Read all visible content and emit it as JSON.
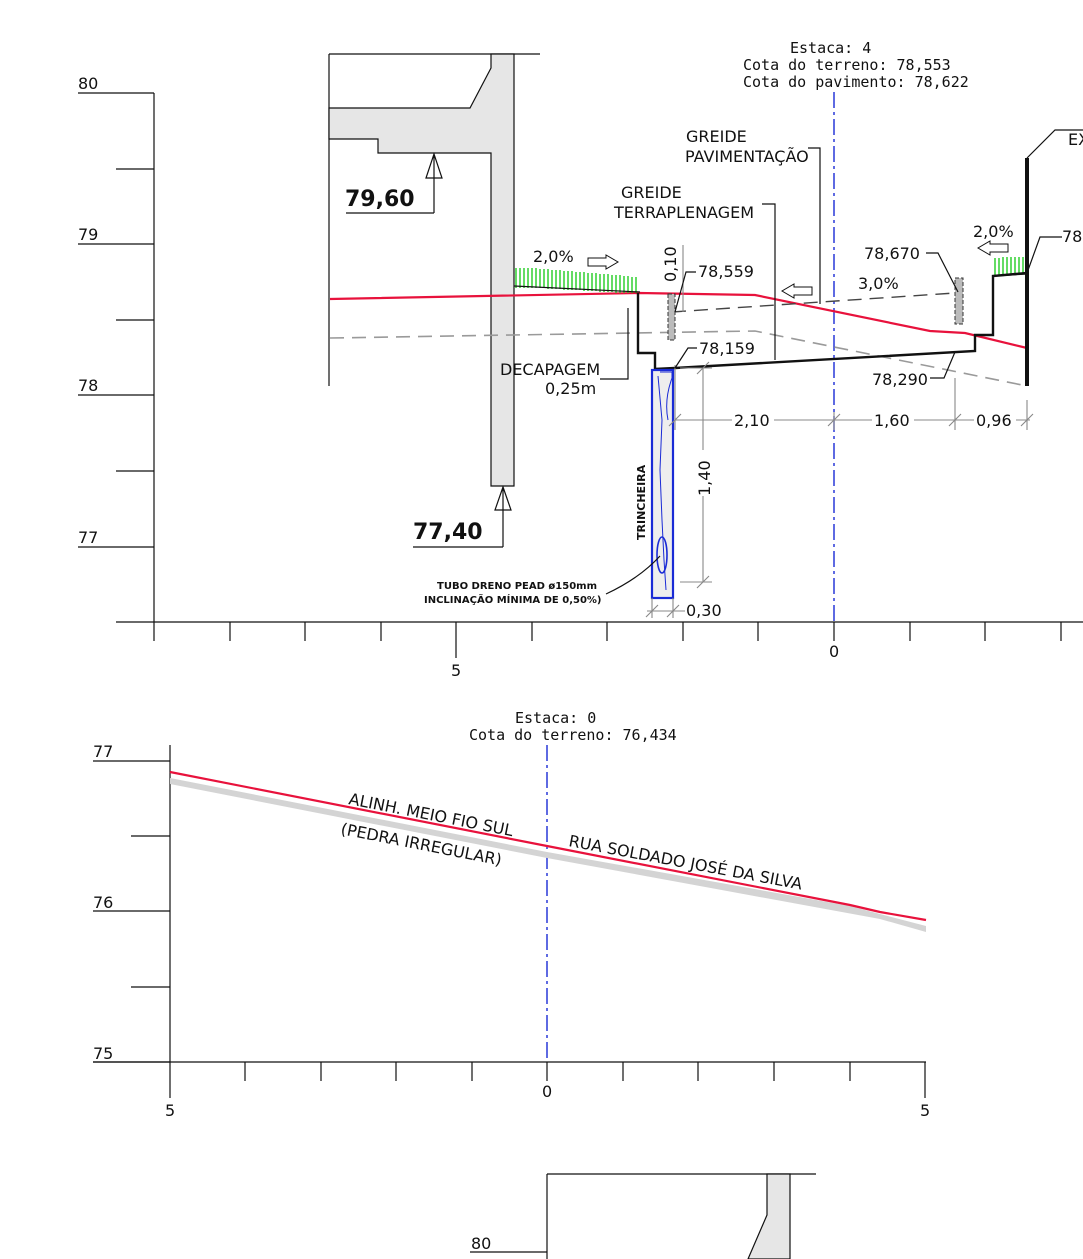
{
  "section_top": {
    "estaca": "Estaca: 4",
    "cota_terreno": "Cota do terreno: 78,553",
    "cota_pavimento": "Cota do pavimento: 78,622",
    "y_ticks": [
      "80",
      "79",
      "78",
      "77"
    ],
    "x_ticks": [
      "5",
      "0"
    ],
    "labels": {
      "greide_pav_1": "GREIDE",
      "greide_pav_2": "PAVIMENTAÇÃO",
      "greide_terr_1": "GREIDE",
      "greide_terr_2": "TERRAPLENAGEM",
      "ex": "EX",
      "decapagem_1": "DECAPAGEM",
      "decapagem_2": "0,25m",
      "trincheira": "TRINCHEIRA",
      "tubo_1": "TUBO DRENO PEAD ø150mm",
      "tubo_2": "INCLINAÇÃO MÍNIMA DE 0,50%)"
    },
    "elevations": {
      "wall_top": "79,60",
      "wall_bottom": "77,40",
      "e1": "78,559",
      "e2": "78,159",
      "e3": "78,670",
      "e4": "78,290",
      "e5": "78"
    },
    "slopes": {
      "left": "2,0%",
      "right": "2,0%",
      "mid": "3,0%"
    },
    "dims": {
      "d1": "2,10",
      "d2": "1,60",
      "d3": "0,96",
      "d4": "1,40",
      "d5": "0,30",
      "d6": "0,10"
    }
  },
  "section_bottom": {
    "estaca": "Estaca: 0",
    "cota_terreno": "Cota do terreno: 76,434",
    "y_ticks": [
      "77",
      "76",
      "75"
    ],
    "x_ticks": [
      "5",
      "0",
      "5"
    ],
    "labels": {
      "alinh": "ALINH. MEIO FIO SUL",
      "pedra": "(PEDRA IRREGULAR)",
      "rua": "RUA SOLDADO JOSÉ DA SILVA"
    }
  },
  "section_third": {
    "y_ticks": [
      "80"
    ]
  },
  "colors": {
    "terrain": "#e8123c",
    "centerline": "#1a2bd6",
    "grass": "#22cc22",
    "drain": "#1a2bd6"
  }
}
